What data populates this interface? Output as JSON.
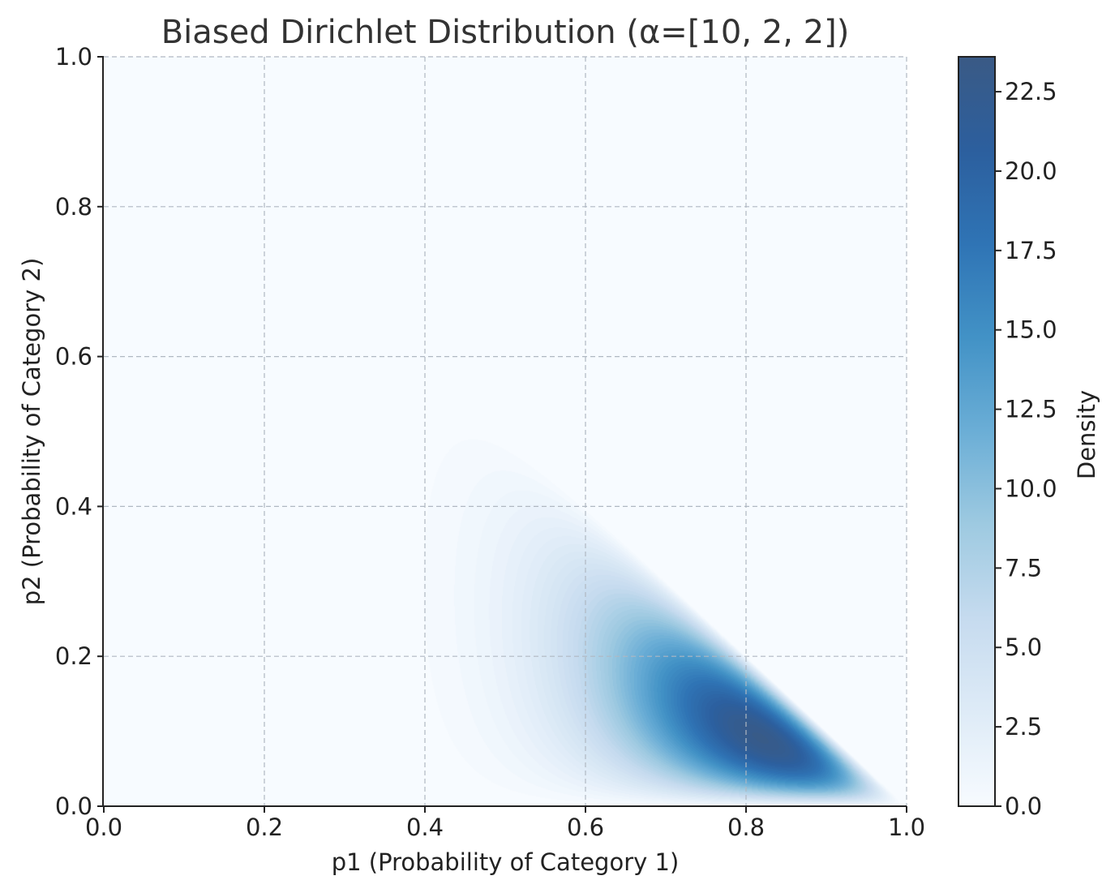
{
  "chart_data": {
    "type": "heatmap",
    "subtype": "filled-contour",
    "title": "Biased Dirichlet Distribution (α=[10, 2, 2])",
    "xlabel": "p1 (Probability of Category 1)",
    "ylabel": "p2 (Probability of Category 2)",
    "xlim": [
      0.0,
      1.0
    ],
    "ylim": [
      0.0,
      1.0
    ],
    "xticks": [
      "0.0",
      "0.2",
      "0.4",
      "0.6",
      "0.8",
      "1.0"
    ],
    "yticks": [
      "0.0",
      "0.2",
      "0.4",
      "0.6",
      "0.8",
      "1.0"
    ],
    "alpha": [
      10,
      2,
      2
    ],
    "peak": {
      "p1": 0.8182,
      "p2": 0.0909
    },
    "grid": true,
    "colormap": "Blues",
    "colorbar": {
      "label": "Density",
      "range": [
        0.0,
        23.6
      ],
      "ticks": [
        "0.0",
        "2.5",
        "5.0",
        "7.5",
        "10.0",
        "12.5",
        "15.0",
        "17.5",
        "20.0",
        "22.5"
      ]
    }
  }
}
